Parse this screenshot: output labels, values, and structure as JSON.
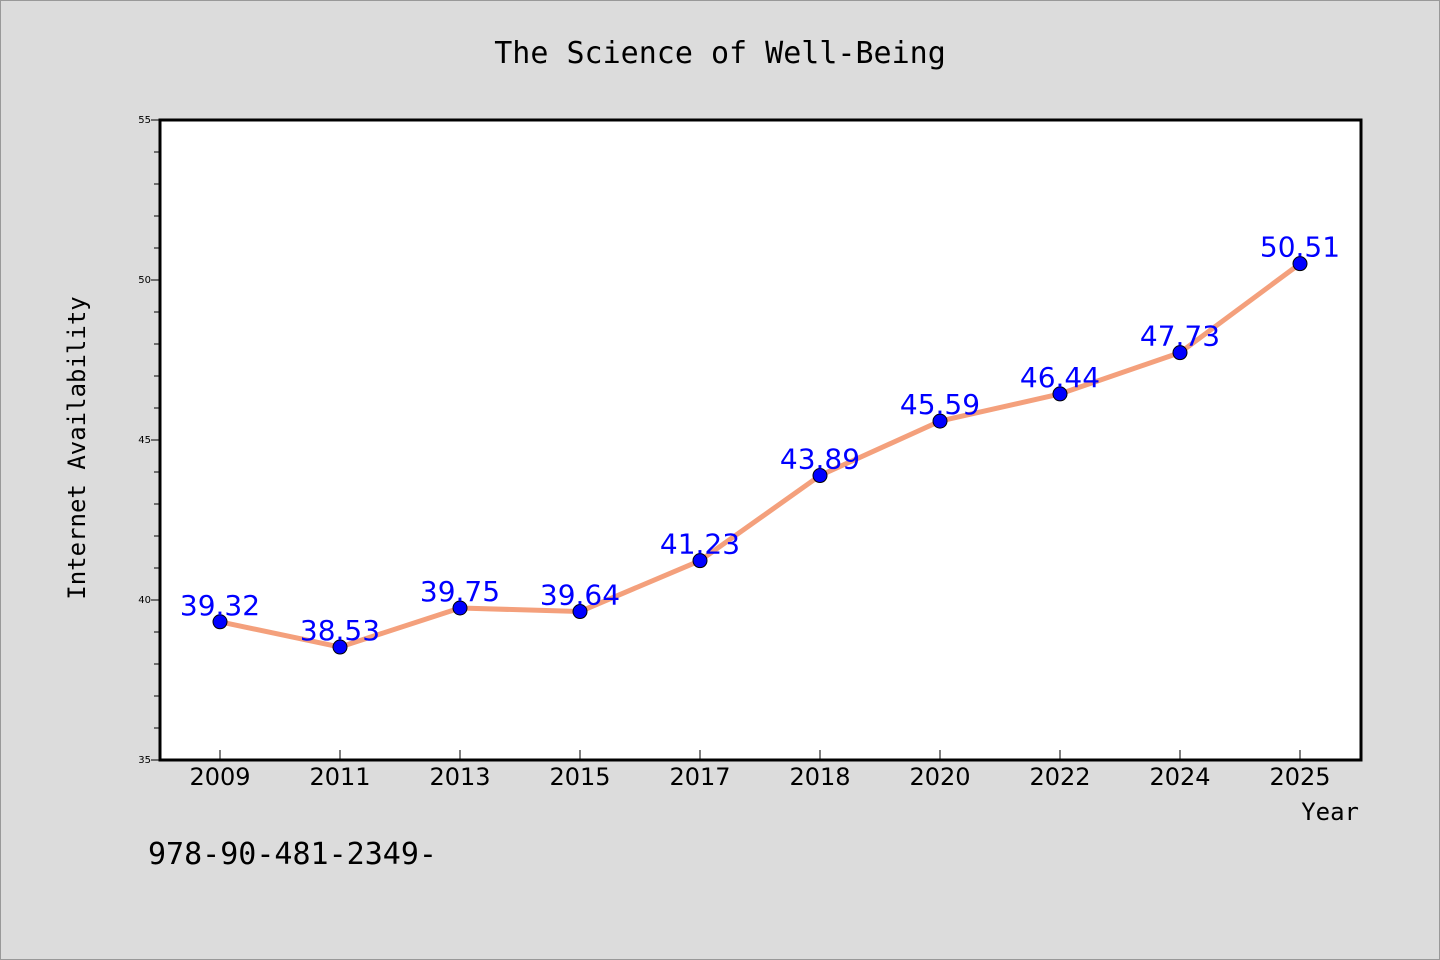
{
  "chart_data": {
    "type": "line",
    "title": "The Science of Well-Being",
    "xlabel": "Year",
    "ylabel": "Internet Availability",
    "categories": [
      "2009",
      "2011",
      "2013",
      "2015",
      "2017",
      "2018",
      "2020",
      "2022",
      "2024",
      "2025"
    ],
    "values": [
      39.32,
      38.53,
      39.75,
      39.64,
      41.23,
      43.89,
      45.59,
      46.44,
      47.73,
      50.51
    ],
    "value_labels": [
      "39.32",
      "38.53",
      "39.75",
      "39.64",
      "41.23",
      "43.89",
      "45.59",
      "46.44",
      "47.73",
      "50.51"
    ],
    "ylim": [
      35,
      55
    ],
    "yticks": [
      35,
      40,
      45,
      50,
      55
    ],
    "ytick_labels": [
      "35",
      "40",
      "45",
      "50",
      "55"
    ],
    "grid": false,
    "line_color": "#f4a07c",
    "marker_color": "#0000ff",
    "label_color": "#0000ff",
    "footnote": "978-90-481-2349-"
  }
}
